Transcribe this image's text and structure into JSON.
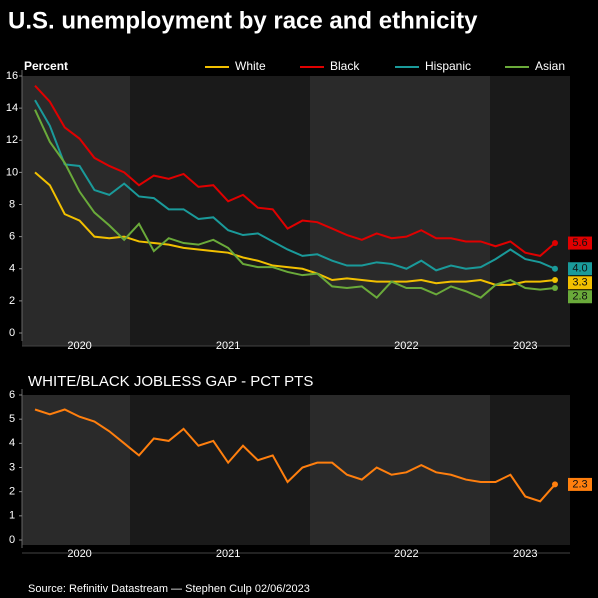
{
  "title": "U.S. unemployment by race and ethnicity",
  "source": "Source: Refinitiv Datastream — Stephen Culp 02/06/2023",
  "chart_data": [
    {
      "type": "line",
      "ylabel": "Percent",
      "ylim": [
        0,
        16
      ],
      "yticks": [
        0,
        2,
        4,
        6,
        8,
        10,
        12,
        14,
        16
      ],
      "legend": "top",
      "categories": [
        null,
        null,
        null,
        "2020",
        null,
        null,
        null,
        null,
        null,
        null,
        null,
        null,
        null,
        "2021",
        null,
        null,
        null,
        null,
        null,
        null,
        null,
        null,
        null,
        null,
        null,
        "2022",
        null,
        null,
        null,
        null,
        null,
        null,
        null,
        "2023",
        null,
        null
      ],
      "series": [
        {
          "name": "White",
          "color": "#f2c000",
          "values": [
            10.0,
            9.2,
            7.4,
            7.0,
            6.0,
            5.9,
            6.0,
            5.7,
            5.6,
            5.5,
            5.3,
            5.2,
            5.1,
            5.0,
            4.7,
            4.5,
            4.2,
            4.1,
            4.0,
            3.7,
            3.3,
            3.4,
            3.3,
            3.2,
            3.2,
            3.2,
            3.3,
            3.1,
            3.2,
            3.2,
            3.3,
            3.0,
            3.0,
            3.2,
            3.2,
            3.3
          ],
          "value_labels": [
            null,
            null,
            null,
            null,
            null,
            null,
            null,
            null,
            null,
            null,
            null,
            null,
            null,
            null,
            null,
            null,
            null,
            null,
            null,
            null,
            null,
            null,
            null,
            null,
            null,
            null,
            null,
            null,
            null,
            null,
            null,
            null,
            null,
            null,
            null,
            "3.3"
          ]
        },
        {
          "name": "Black",
          "color": "#e00000",
          "values": [
            15.4,
            14.4,
            12.8,
            12.1,
            10.9,
            10.4,
            10.0,
            9.2,
            9.8,
            9.6,
            9.9,
            9.1,
            9.2,
            8.2,
            8.6,
            7.8,
            7.7,
            6.5,
            7.0,
            6.9,
            6.5,
            6.1,
            5.8,
            6.2,
            5.9,
            6.0,
            6.4,
            5.9,
            5.9,
            5.7,
            5.7,
            5.4,
            5.7,
            5.0,
            4.8,
            5.6
          ],
          "value_labels": [
            null,
            null,
            null,
            null,
            null,
            null,
            null,
            null,
            null,
            null,
            null,
            null,
            null,
            null,
            null,
            null,
            null,
            null,
            null,
            null,
            null,
            null,
            null,
            null,
            null,
            null,
            null,
            null,
            null,
            null,
            null,
            null,
            null,
            null,
            null,
            "5.6"
          ]
        },
        {
          "name": "Hispanic",
          "color": "#1a9a9a",
          "values": [
            14.5,
            12.9,
            10.5,
            10.4,
            8.9,
            8.6,
            9.3,
            8.5,
            8.4,
            7.7,
            7.7,
            7.1,
            7.2,
            6.4,
            6.1,
            6.2,
            5.7,
            5.2,
            4.8,
            4.9,
            4.5,
            4.2,
            4.2,
            4.4,
            4.3,
            4.0,
            4.5,
            3.9,
            4.2,
            4.0,
            4.1,
            4.6,
            5.2,
            4.6,
            4.4,
            4.0
          ],
          "value_labels": [
            null,
            null,
            null,
            null,
            null,
            null,
            null,
            null,
            null,
            null,
            null,
            null,
            null,
            null,
            null,
            null,
            null,
            null,
            null,
            null,
            null,
            null,
            null,
            null,
            null,
            null,
            null,
            null,
            null,
            null,
            null,
            null,
            null,
            null,
            null,
            "4.0"
          ]
        },
        {
          "name": "Asian",
          "color": "#6aaa3a",
          "values": [
            13.9,
            11.9,
            10.6,
            8.8,
            7.5,
            6.7,
            5.8,
            6.8,
            5.1,
            5.9,
            5.6,
            5.5,
            5.8,
            5.3,
            4.3,
            4.1,
            4.1,
            3.8,
            3.6,
            3.7,
            2.9,
            2.8,
            2.9,
            2.2,
            3.2,
            2.8,
            2.8,
            2.4,
            2.9,
            2.6,
            2.2,
            3.0,
            3.3,
            2.8,
            2.7,
            2.8
          ],
          "value_labels": [
            null,
            null,
            null,
            null,
            null,
            null,
            null,
            null,
            null,
            null,
            null,
            null,
            null,
            null,
            null,
            null,
            null,
            null,
            null,
            null,
            null,
            null,
            null,
            null,
            null,
            null,
            null,
            null,
            null,
            null,
            null,
            null,
            null,
            null,
            null,
            "2.8"
          ]
        }
      ]
    },
    {
      "type": "line",
      "title": "WHITE/BLACK JOBLESS GAP - PCT PTS",
      "ylim": [
        0,
        6
      ],
      "yticks": [
        0,
        1,
        2,
        3,
        4,
        5,
        6
      ],
      "color": "#ff7f0e",
      "categories": [
        null,
        null,
        null,
        "2020",
        null,
        null,
        null,
        null,
        null,
        null,
        null,
        null,
        null,
        "2021",
        null,
        null,
        null,
        null,
        null,
        null,
        null,
        null,
        null,
        null,
        null,
        "2022",
        null,
        null,
        null,
        null,
        null,
        null,
        null,
        "2023",
        null,
        null
      ],
      "values": [
        5.4,
        5.2,
        5.4,
        5.1,
        4.9,
        4.5,
        4.0,
        3.5,
        4.2,
        4.1,
        4.6,
        3.9,
        4.1,
        3.2,
        3.9,
        3.3,
        3.5,
        2.4,
        3.0,
        3.2,
        3.2,
        2.7,
        2.5,
        3.0,
        2.7,
        2.8,
        3.1,
        2.8,
        2.7,
        2.5,
        2.4,
        2.4,
        2.7,
        1.8,
        1.6,
        2.3
      ],
      "value_labels": [
        null,
        null,
        null,
        null,
        null,
        null,
        null,
        null,
        null,
        null,
        null,
        null,
        null,
        null,
        null,
        null,
        null,
        null,
        null,
        null,
        null,
        null,
        null,
        null,
        null,
        null,
        null,
        null,
        null,
        null,
        null,
        null,
        null,
        null,
        null,
        "2.3"
      ]
    }
  ]
}
